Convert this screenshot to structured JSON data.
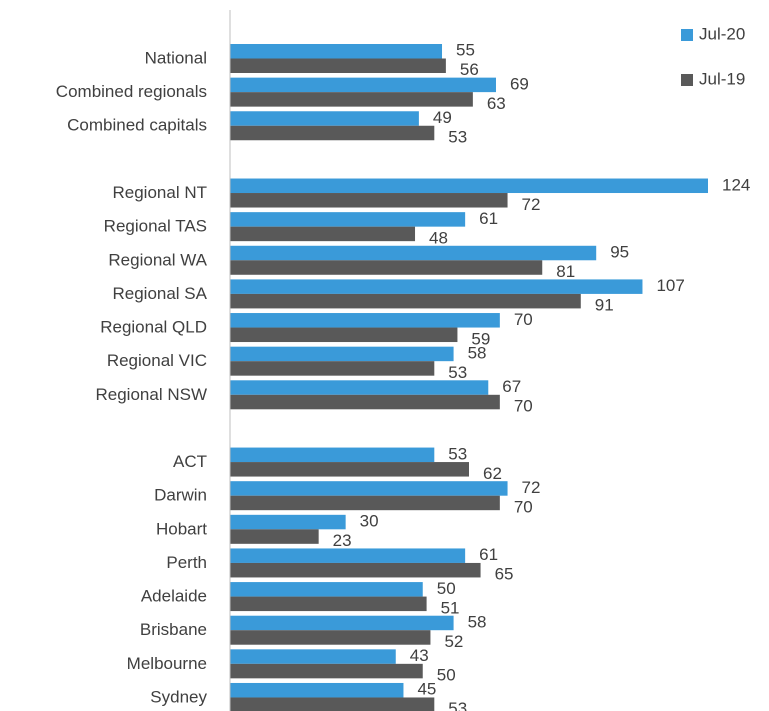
{
  "chart_data": {
    "type": "hbar",
    "categories": [
      "National",
      "Combined regionals",
      "Combined capitals",
      null,
      "Regional NT",
      "Regional TAS",
      "Regional WA",
      "Regional SA",
      "Regional QLD",
      "Regional VIC",
      "Regional NSW",
      null,
      "ACT",
      "Darwin",
      "Hobart",
      "Perth",
      "Adelaide",
      "Brisbane",
      "Melbourne",
      "Sydney"
    ],
    "series": [
      {
        "name": "Jul-20",
        "color": "#3a9ad9",
        "values": [
          55,
          69,
          49,
          null,
          124,
          61,
          95,
          107,
          70,
          58,
          67,
          null,
          53,
          72,
          30,
          61,
          50,
          58,
          43,
          45
        ]
      },
      {
        "name": "Jul-19",
        "color": "#595959",
        "values": [
          56,
          63,
          53,
          null,
          72,
          48,
          81,
          91,
          59,
          53,
          70,
          null,
          62,
          70,
          23,
          65,
          51,
          52,
          50,
          53
        ]
      }
    ],
    "legend": "top-right"
  }
}
